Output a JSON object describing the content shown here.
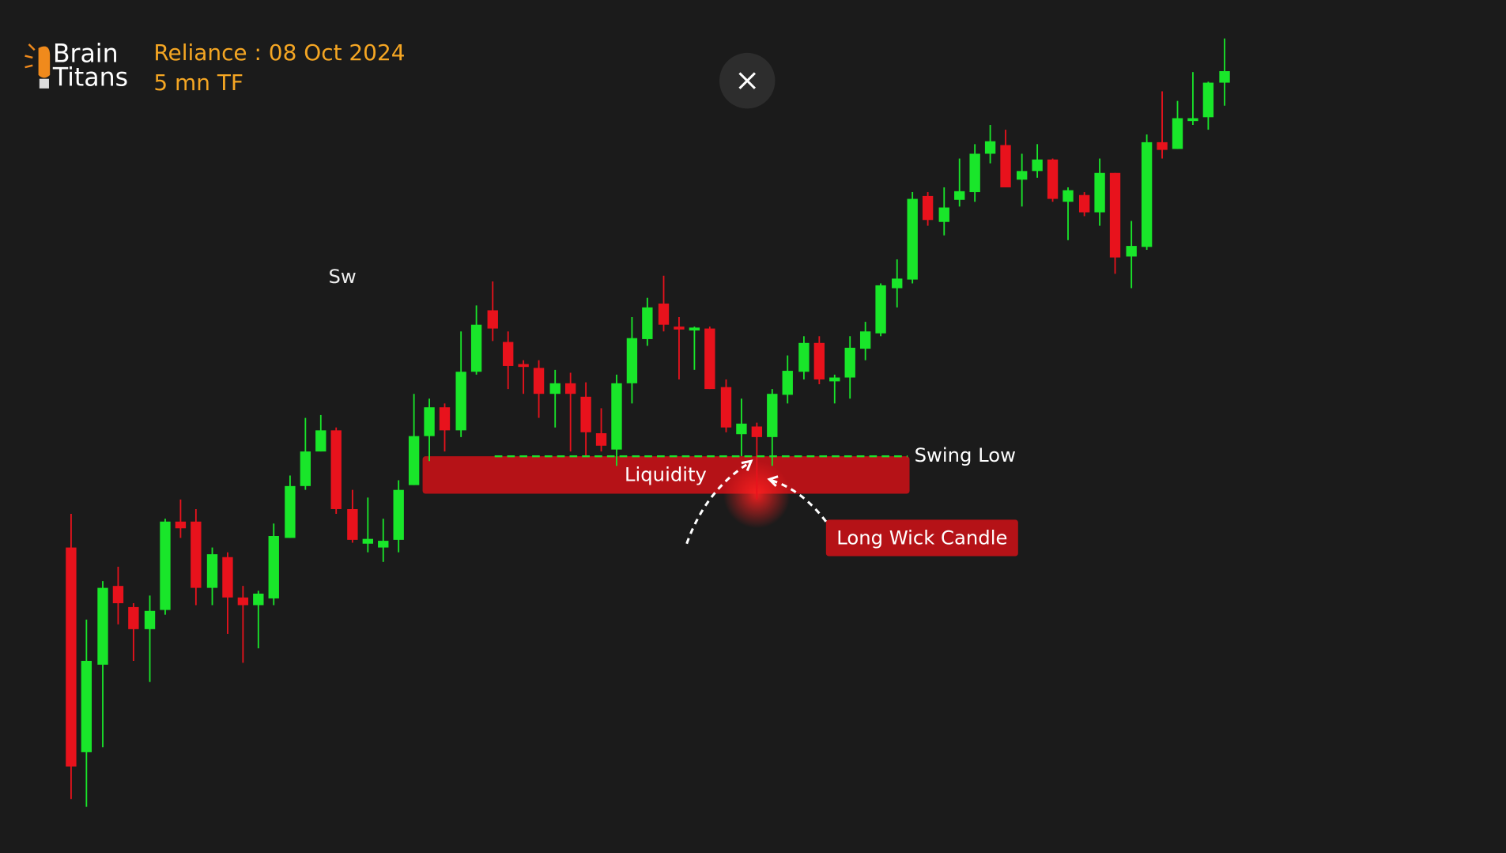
{
  "logo": {
    "line1": "Brain",
    "line2": "Titans"
  },
  "header": {
    "title": "Reliance : 08 Oct 2024",
    "subtitle": "5 mn TF"
  },
  "annotations": {
    "partial": "Sw",
    "zone": "Liquidity",
    "level": "Swing Low",
    "callout": "Long Wick Candle"
  }
}
